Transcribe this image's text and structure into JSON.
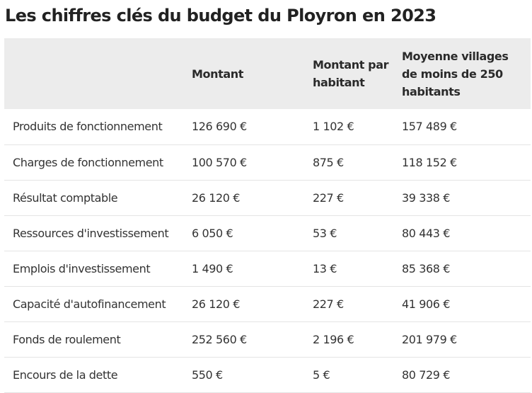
{
  "title": "Les chiffres clés du budget du Ployron en 2023",
  "table": {
    "headers": [
      "",
      "Montant",
      "Montant par habitant",
      "Moyenne villages de moins de 250 habitants"
    ],
    "rows": [
      [
        "Produits de fonctionnement",
        "126 690 €",
        "1 102 €",
        "157 489 €"
      ],
      [
        "Charges de fonctionnement",
        "100 570 €",
        "875 €",
        "118 152 €"
      ],
      [
        "Résultat comptable",
        "26 120 €",
        "227 €",
        "39 338 €"
      ],
      [
        "Ressources d'investissement",
        "6 050 €",
        "53 €",
        "80 443 €"
      ],
      [
        "Emplois d'investissement",
        "1 490 €",
        "13 €",
        "85 368 €"
      ],
      [
        "Capacité d'autofinancement",
        "26 120 €",
        "227 €",
        "41 906 €"
      ],
      [
        "Fonds de roulement",
        "252 560 €",
        "2 196 €",
        "201 979 €"
      ],
      [
        "Encours de la dette",
        "550 €",
        "5 €",
        "80 729 €"
      ]
    ]
  }
}
